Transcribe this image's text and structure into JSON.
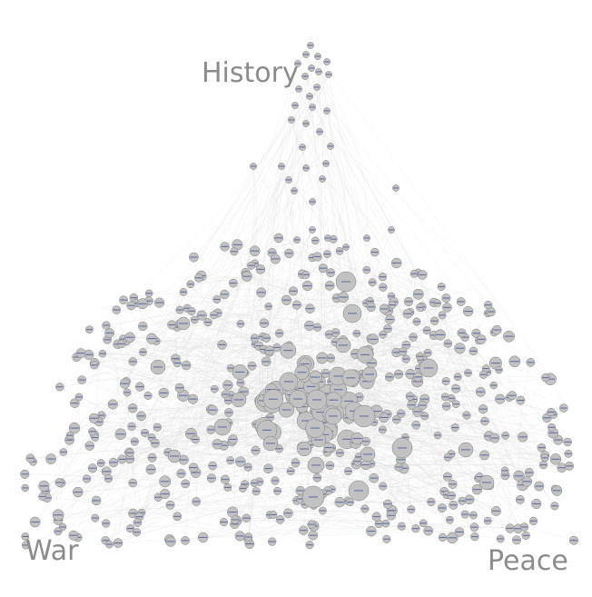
{
  "anchors": {
    "history": "History",
    "war": "War",
    "peace": "Peace"
  },
  "colors": {
    "node_fill": "#c2c2c2",
    "node_stroke": "#7a7a7a",
    "edge": "#d7d7d7",
    "node_label": "#3a4f9a",
    "anchor_label": "#8c8c8c"
  }
}
